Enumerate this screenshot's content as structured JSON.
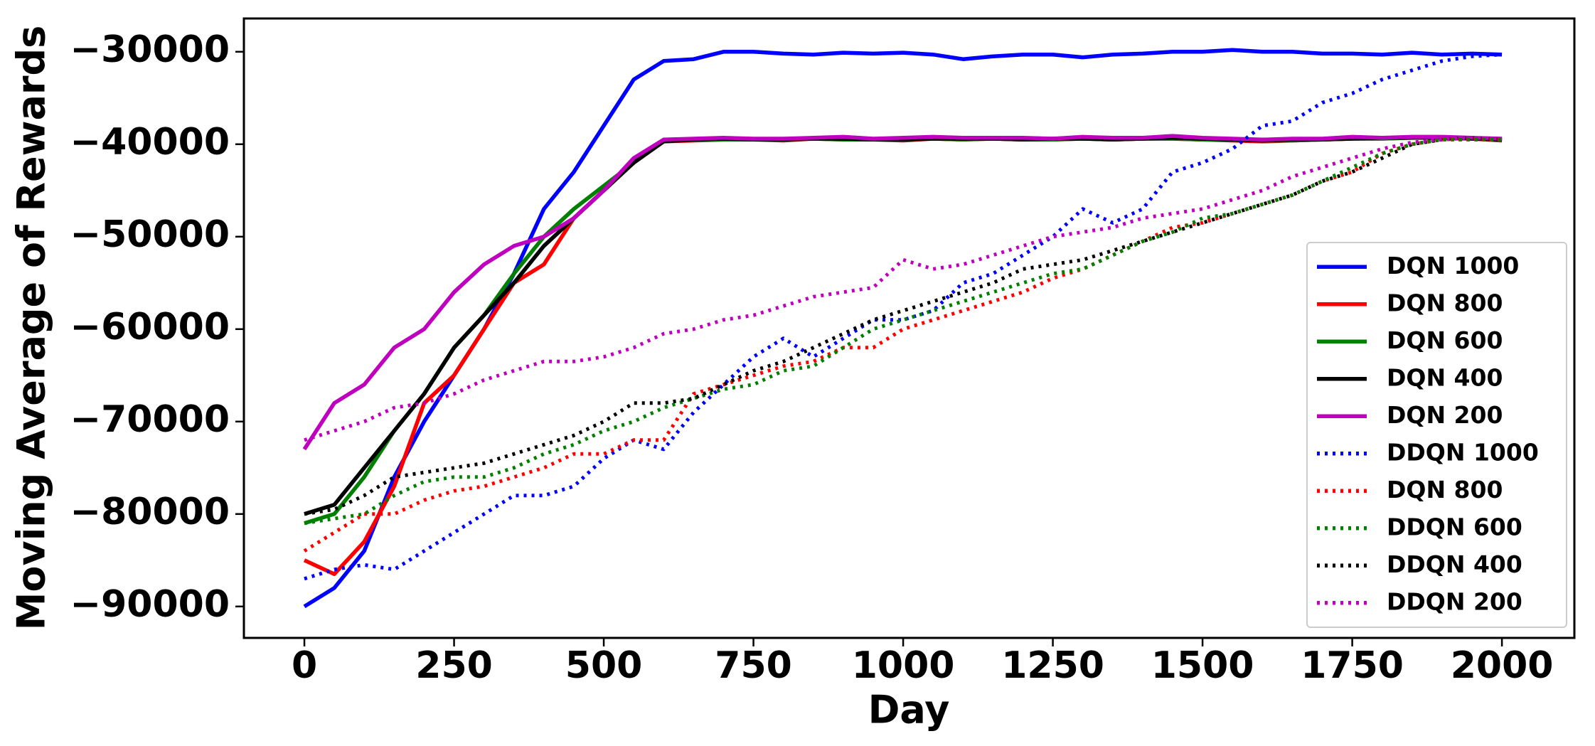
{
  "chart_data": {
    "type": "line",
    "xlabel": "Day",
    "ylabel": "Moving Average of Rewards",
    "x": [
      0,
      50,
      100,
      150,
      200,
      250,
      300,
      350,
      400,
      450,
      500,
      550,
      600,
      650,
      700,
      750,
      800,
      850,
      900,
      950,
      1000,
      1050,
      1100,
      1150,
      1200,
      1250,
      1300,
      1350,
      1400,
      1450,
      1500,
      1550,
      1600,
      1650,
      1700,
      1750,
      1800,
      1850,
      1900,
      1950,
      2000
    ],
    "xlim": [
      -101,
      2121
    ],
    "xticks": [
      0,
      250,
      500,
      750,
      1000,
      1250,
      1500,
      1750,
      2000
    ],
    "ylim": [
      -93400,
      -26400
    ],
    "yticks": [
      {
        "value": -90000,
        "label": "−90000"
      },
      {
        "value": -80000,
        "label": "−80000"
      },
      {
        "value": -70000,
        "label": "−70000"
      },
      {
        "value": -60000,
        "label": "−60000"
      },
      {
        "value": -50000,
        "label": "−50000"
      },
      {
        "value": -40000,
        "label": "−40000"
      },
      {
        "value": -30000,
        "label": "−30000"
      }
    ],
    "grid": false,
    "legend": "center right",
    "series": [
      {
        "name": "DQN 1000",
        "color": "#0000ff",
        "style": "solid",
        "values": [
          -90000,
          -88000,
          -84000,
          -76000,
          -70000,
          -65000,
          -60000,
          -54000,
          -47000,
          -43000,
          -38000,
          -33000,
          -31000,
          -30800,
          -30000,
          -30000,
          -30200,
          -30300,
          -30100,
          -30200,
          -30100,
          -30300,
          -30800,
          -30500,
          -30300,
          -30300,
          -30600,
          -30300,
          -30200,
          -30000,
          -30000,
          -29800,
          -30000,
          -30000,
          -30200,
          -30200,
          -30300,
          -30100,
          -30300,
          -30200,
          -30300
        ]
      },
      {
        "name": "DQN 800",
        "color": "#ff0000",
        "style": "solid",
        "values": [
          -85000,
          -86500,
          -83000,
          -77000,
          -68000,
          -65000,
          -60000,
          -55000,
          -53000,
          -48000,
          -45000,
          -42000,
          -39700,
          -39600,
          -39500,
          -39500,
          -39600,
          -39400,
          -39500,
          -39500,
          -39600,
          -39400,
          -39500,
          -39400,
          -39500,
          -39500,
          -39400,
          -39500,
          -39400,
          -39400,
          -39500,
          -39600,
          -39700,
          -39600,
          -39500,
          -39400,
          -39400,
          -39300,
          -39300,
          -39400,
          -39600
        ]
      },
      {
        "name": "DQN 600",
        "color": "#008000",
        "style": "solid",
        "values": [
          -81000,
          -80000,
          -76000,
          -71000,
          -67000,
          -62000,
          -58500,
          -54000,
          -50000,
          -47000,
          -44500,
          -42000,
          -39700,
          -39500,
          -39500,
          -39500,
          -39500,
          -39400,
          -39500,
          -39500,
          -39500,
          -39400,
          -39500,
          -39400,
          -39500,
          -39500,
          -39400,
          -39500,
          -39400,
          -39400,
          -39500,
          -39500,
          -39600,
          -39600,
          -39500,
          -39400,
          -39400,
          -39300,
          -39300,
          -39400,
          -39500
        ]
      },
      {
        "name": "DQN 400",
        "color": "#000000",
        "style": "solid",
        "values": [
          -80000,
          -79000,
          -75000,
          -71000,
          -67000,
          -62000,
          -58500,
          -55000,
          -51000,
          -48000,
          -45000,
          -42000,
          -39700,
          -39500,
          -39400,
          -39500,
          -39500,
          -39400,
          -39400,
          -39500,
          -39500,
          -39400,
          -39400,
          -39400,
          -39500,
          -39400,
          -39400,
          -39500,
          -39400,
          -39300,
          -39400,
          -39500,
          -39600,
          -39500,
          -39500,
          -39400,
          -39300,
          -39300,
          -39300,
          -39400,
          -39500
        ]
      },
      {
        "name": "DQN 200",
        "color": "#bf00bf",
        "style": "solid",
        "values": [
          -73000,
          -68000,
          -66000,
          -62000,
          -60000,
          -56000,
          -53000,
          -51000,
          -50000,
          -48000,
          -45000,
          -41500,
          -39500,
          -39400,
          -39300,
          -39400,
          -39400,
          -39300,
          -39200,
          -39400,
          -39300,
          -39200,
          -39300,
          -39300,
          -39300,
          -39400,
          -39200,
          -39300,
          -39300,
          -39100,
          -39300,
          -39400,
          -39500,
          -39400,
          -39400,
          -39200,
          -39300,
          -39200,
          -39200,
          -39300,
          -39400
        ]
      },
      {
        "name": "DDQN 1000",
        "color": "#0000ff",
        "style": "dotted",
        "values": [
          -87000,
          -86000,
          -85500,
          -86000,
          -84000,
          -82000,
          -80000,
          -78000,
          -78000,
          -77000,
          -74000,
          -72000,
          -73000,
          -69000,
          -66000,
          -63000,
          -61000,
          -63000,
          -61000,
          -59000,
          -59000,
          -58000,
          -55000,
          -54000,
          -52000,
          -50000,
          -47000,
          -48500,
          -47000,
          -43000,
          -42000,
          -40500,
          -38000,
          -37500,
          -35500,
          -34500,
          -33000,
          -32000,
          -31000,
          -30500,
          -30300
        ]
      },
      {
        "name": "DQN 800",
        "color": "#ff0000",
        "style": "dotted",
        "values": [
          -84000,
          -82000,
          -80000,
          -80000,
          -78500,
          -77500,
          -77000,
          -76000,
          -75000,
          -73500,
          -73500,
          -72000,
          -72000,
          -67000,
          -66000,
          -65000,
          -64000,
          -63500,
          -62000,
          -62000,
          -60000,
          -59000,
          -58000,
          -57000,
          -56000,
          -54500,
          -53500,
          -52000,
          -50500,
          -49000,
          -48500,
          -47500,
          -46500,
          -45500,
          -44000,
          -43000,
          -41000,
          -40000,
          -39500,
          -39500,
          -39500
        ]
      },
      {
        "name": "DDQN 600",
        "color": "#008000",
        "style": "dotted",
        "values": [
          -81000,
          -80500,
          -80000,
          -78000,
          -76500,
          -76000,
          -76000,
          -75000,
          -73500,
          -72500,
          -71000,
          -70000,
          -68500,
          -67500,
          -66500,
          -66000,
          -64500,
          -64000,
          -62000,
          -60000,
          -59000,
          -58000,
          -57000,
          -56000,
          -55000,
          -54000,
          -53500,
          -52000,
          -50500,
          -49500,
          -48000,
          -47500,
          -46500,
          -45500,
          -44000,
          -42500,
          -41000,
          -40000,
          -39500,
          -39500,
          -39500
        ]
      },
      {
        "name": "DDQN 400",
        "color": "#000000",
        "style": "dotted",
        "values": [
          -80000,
          -79500,
          -78000,
          -76000,
          -75500,
          -75000,
          -74500,
          -73500,
          -72500,
          -71500,
          -70000,
          -68000,
          -68000,
          -67500,
          -66000,
          -64500,
          -63500,
          -62000,
          -60500,
          -59000,
          -58000,
          -57000,
          -56000,
          -55000,
          -53500,
          -53000,
          -52500,
          -51500,
          -50500,
          -49500,
          -48500,
          -47500,
          -46500,
          -45500,
          -44000,
          -43000,
          -41500,
          -40000,
          -39500,
          -39300,
          -39500
        ]
      },
      {
        "name": "DDQN 200",
        "color": "#bf00bf",
        "style": "dotted",
        "values": [
          -72000,
          -71000,
          -70000,
          -68500,
          -68000,
          -67000,
          -65500,
          -64500,
          -63500,
          -63500,
          -63000,
          -62000,
          -60500,
          -60000,
          -59000,
          -58500,
          -57500,
          -56500,
          -56000,
          -55500,
          -52500,
          -53500,
          -53000,
          -52000,
          -51000,
          -50000,
          -49500,
          -49000,
          -48000,
          -47500,
          -47000,
          -46000,
          -45000,
          -43500,
          -42500,
          -41500,
          -40500,
          -39800,
          -39500,
          -39300,
          -39400
        ]
      }
    ]
  }
}
